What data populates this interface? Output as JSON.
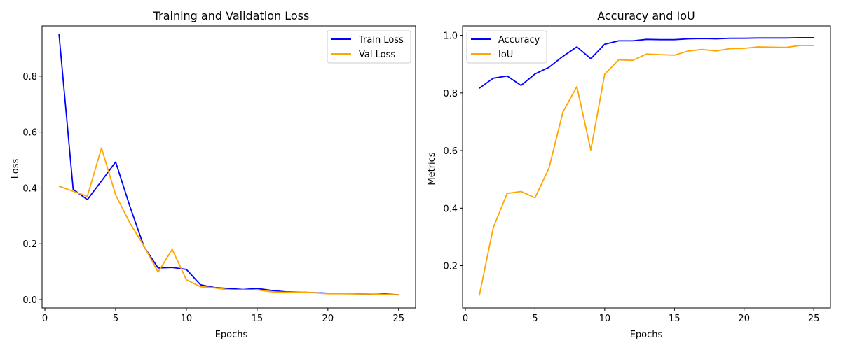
{
  "chart_data": [
    {
      "type": "line",
      "title": "Training and Validation Loss",
      "xlabel": "Epochs",
      "ylabel": "Loss",
      "xlim": [
        -0.2,
        26.2
      ],
      "ylim": [
        -0.03,
        0.98
      ],
      "xticks": [
        0,
        5,
        10,
        15,
        20,
        25
      ],
      "xtick_labels": [
        "0",
        "5",
        "10",
        "15",
        "20",
        "25"
      ],
      "yticks": [
        0.0,
        0.2,
        0.4,
        0.6,
        0.8
      ],
      "ytick_labels": [
        "0.0",
        "0.2",
        "0.4",
        "0.6",
        "0.8"
      ],
      "legend_position": "top-right",
      "grid": false,
      "x": [
        1,
        2,
        3,
        4,
        5,
        6,
        7,
        8,
        9,
        10,
        11,
        12,
        13,
        14,
        15,
        16,
        17,
        18,
        19,
        20,
        21,
        22,
        23,
        24,
        25
      ],
      "series": [
        {
          "name": "Train Loss",
          "color": "#0000ff",
          "values": [
            0.95,
            0.395,
            0.358,
            0.425,
            0.493,
            0.335,
            0.19,
            0.113,
            0.115,
            0.108,
            0.053,
            0.043,
            0.04,
            0.036,
            0.04,
            0.033,
            0.028,
            0.027,
            0.025,
            0.023,
            0.023,
            0.021,
            0.019,
            0.02,
            0.017
          ]
        },
        {
          "name": "Val Loss",
          "color": "#ffa500",
          "values": [
            0.406,
            0.388,
            0.37,
            0.543,
            0.375,
            0.275,
            0.192,
            0.098,
            0.18,
            0.071,
            0.046,
            0.042,
            0.035,
            0.035,
            0.035,
            0.028,
            0.026,
            0.027,
            0.025,
            0.021,
            0.021,
            0.02,
            0.02,
            0.018,
            0.017
          ]
        }
      ]
    },
    {
      "type": "line",
      "title": "Accuracy and IoU",
      "xlabel": "Epochs",
      "ylabel": "Metrics",
      "xlim": [
        -0.2,
        26.2
      ],
      "ylim": [
        0.053,
        1.033
      ],
      "xticks": [
        0,
        5,
        10,
        15,
        20,
        25
      ],
      "xtick_labels": [
        "0",
        "5",
        "10",
        "15",
        "20",
        "25"
      ],
      "yticks": [
        0.2,
        0.4,
        0.6,
        0.8,
        1.0
      ],
      "ytick_labels": [
        "0.2",
        "0.4",
        "0.6",
        "0.8",
        "1.0"
      ],
      "legend_position": "top-left",
      "grid": false,
      "x": [
        1,
        2,
        3,
        4,
        5,
        6,
        7,
        8,
        9,
        10,
        11,
        12,
        13,
        14,
        15,
        16,
        17,
        18,
        19,
        20,
        21,
        22,
        23,
        24,
        25
      ],
      "series": [
        {
          "name": "Accuracy",
          "color": "#0000ff",
          "values": [
            0.816,
            0.851,
            0.859,
            0.826,
            0.866,
            0.889,
            0.927,
            0.96,
            0.919,
            0.969,
            0.981,
            0.981,
            0.986,
            0.985,
            0.985,
            0.988,
            0.989,
            0.988,
            0.99,
            0.99,
            0.991,
            0.991,
            0.991,
            0.992,
            0.992
          ]
        },
        {
          "name": "IoU",
          "color": "#ffa500",
          "values": [
            0.096,
            0.332,
            0.451,
            0.458,
            0.436,
            0.539,
            0.734,
            0.822,
            0.602,
            0.865,
            0.915,
            0.913,
            0.935,
            0.933,
            0.931,
            0.946,
            0.951,
            0.946,
            0.954,
            0.955,
            0.96,
            0.959,
            0.958,
            0.965,
            0.965
          ]
        }
      ]
    }
  ]
}
